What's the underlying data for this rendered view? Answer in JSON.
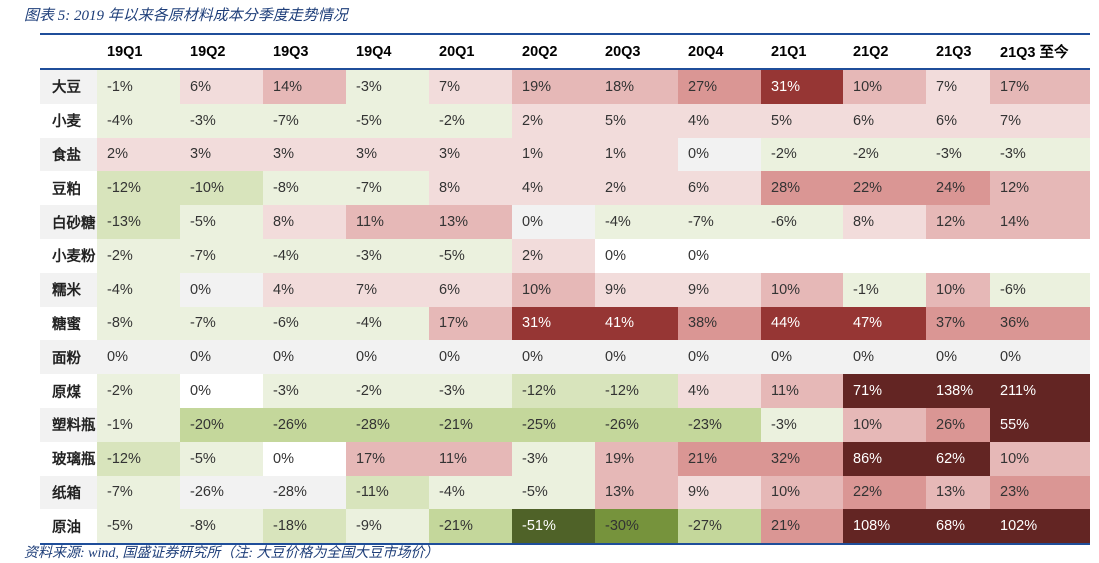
{
  "title": "图表 5:  2019 年以来各原材料成本分季度走势情况",
  "footer": "资料来源:  wind,  国盛证券研究所（注:  大豆价格为全国大豆市场价）",
  "palette": {
    "w": "#ffffff",
    "z": "#f2f2f2",
    "g1": "#ebf1de",
    "g2": "#d8e4bc",
    "g3": "#c4d79b",
    "g4": "#76933c",
    "g5": "#4f6228",
    "r1": "#f2dcdb",
    "r2": "#e6b8b7",
    "r3": "#da9694",
    "r4": "#963634",
    "r5": "#632523"
  },
  "table": {
    "columns": [
      "",
      "19Q1",
      "19Q2",
      "19Q3",
      "19Q4",
      "20Q1",
      "20Q2",
      "20Q3",
      "20Q4",
      "21Q1",
      "21Q2",
      "21Q3",
      "21Q3 至今"
    ],
    "rows": [
      {
        "label": "大豆",
        "values": [
          "-1%",
          "6%",
          "14%",
          "-3%",
          "7%",
          "19%",
          "18%",
          "27%",
          "31%",
          "10%",
          "7%",
          "17%"
        ],
        "colors": [
          "g1",
          "r1",
          "r2",
          "g1",
          "r1",
          "r2",
          "r2",
          "r3",
          "r4",
          "r2",
          "r1",
          "r2"
        ]
      },
      {
        "label": "小麦",
        "values": [
          "-4%",
          "-3%",
          "-7%",
          "-5%",
          "-2%",
          "2%",
          "5%",
          "4%",
          "5%",
          "6%",
          "6%",
          "7%"
        ],
        "colors": [
          "g1",
          "g1",
          "g1",
          "g1",
          "g1",
          "r1",
          "r1",
          "r1",
          "r1",
          "r1",
          "r1",
          "r1"
        ]
      },
      {
        "label": "食盐",
        "values": [
          "2%",
          "3%",
          "3%",
          "3%",
          "3%",
          "1%",
          "1%",
          "0%",
          "-2%",
          "-2%",
          "-3%",
          "-3%"
        ],
        "colors": [
          "r1",
          "r1",
          "r1",
          "r1",
          "r1",
          "r1",
          "r1",
          "z",
          "g1",
          "g1",
          "g1",
          "g1"
        ]
      },
      {
        "label": "豆粕",
        "values": [
          "-12%",
          "-10%",
          "-8%",
          "-7%",
          "8%",
          "4%",
          "2%",
          "6%",
          "28%",
          "22%",
          "24%",
          "12%"
        ],
        "colors": [
          "g2",
          "g2",
          "g1",
          "g1",
          "r1",
          "r1",
          "r1",
          "r1",
          "r3",
          "r3",
          "r3",
          "r2"
        ]
      },
      {
        "label": "白砂糖",
        "values": [
          "-13%",
          "-5%",
          "8%",
          "11%",
          "13%",
          "0%",
          "-4%",
          "-7%",
          "-6%",
          "8%",
          "12%",
          "14%"
        ],
        "colors": [
          "g2",
          "g1",
          "r1",
          "r2",
          "r2",
          "z",
          "g1",
          "g1",
          "g1",
          "r1",
          "r2",
          "r2"
        ]
      },
      {
        "label": "小麦粉",
        "values": [
          "-2%",
          "-7%",
          "-4%",
          "-3%",
          "-5%",
          "2%",
          "0%",
          "0%",
          "",
          "",
          "",
          ""
        ],
        "colors": [
          "g1",
          "g1",
          "g1",
          "g1",
          "g1",
          "r1",
          "w",
          "w",
          "w",
          "w",
          "w",
          "w"
        ]
      },
      {
        "label": "糯米",
        "values": [
          "-4%",
          "0%",
          "4%",
          "7%",
          "6%",
          "10%",
          "9%",
          "9%",
          "10%",
          "-1%",
          "10%",
          "-6%"
        ],
        "colors": [
          "g1",
          "z",
          "r1",
          "r1",
          "r1",
          "r2",
          "r1",
          "r1",
          "r2",
          "g1",
          "r2",
          "g1"
        ]
      },
      {
        "label": "糖蜜",
        "values": [
          "-8%",
          "-7%",
          "-6%",
          "-4%",
          "17%",
          "31%",
          "41%",
          "38%",
          "44%",
          "47%",
          "37%",
          "36%"
        ],
        "colors": [
          "g1",
          "g1",
          "g1",
          "g1",
          "r2",
          "r4",
          "r4",
          "r3",
          "r4",
          "r4",
          "r3",
          "r3"
        ]
      },
      {
        "label": "面粉",
        "values": [
          "0%",
          "0%",
          "0%",
          "0%",
          "0%",
          "0%",
          "0%",
          "0%",
          "0%",
          "0%",
          "0%",
          "0%"
        ],
        "colors": [
          "z",
          "z",
          "z",
          "z",
          "z",
          "z",
          "z",
          "z",
          "z",
          "z",
          "z",
          "z"
        ]
      },
      {
        "label": "原煤",
        "values": [
          "-2%",
          "0%",
          "-3%",
          "-2%",
          "-3%",
          "-12%",
          "-12%",
          "4%",
          "11%",
          "71%",
          "138%",
          "211%"
        ],
        "colors": [
          "g1",
          "w",
          "g1",
          "g1",
          "g1",
          "g2",
          "g2",
          "r1",
          "r2",
          "r5",
          "r5",
          "r5"
        ]
      },
      {
        "label": "塑料瓶",
        "values": [
          "-1%",
          "-20%",
          "-26%",
          "-28%",
          "-21%",
          "-25%",
          "-26%",
          "-23%",
          "-3%",
          "10%",
          "26%",
          "55%"
        ],
        "colors": [
          "g1",
          "g3",
          "g3",
          "g3",
          "g3",
          "g3",
          "g3",
          "g3",
          "g1",
          "r2",
          "r3",
          "r5"
        ]
      },
      {
        "label": "玻璃瓶",
        "values": [
          "-12%",
          "-5%",
          "0%",
          "17%",
          "11%",
          "-3%",
          "19%",
          "21%",
          "32%",
          "86%",
          "62%",
          "10%"
        ],
        "colors": [
          "g2",
          "g1",
          "w",
          "r2",
          "r2",
          "g1",
          "r2",
          "r3",
          "r3",
          "r5",
          "r5",
          "r2"
        ]
      },
      {
        "label": "纸箱",
        "values": [
          "-7%",
          "-26%",
          "-28%",
          "-11%",
          "-4%",
          "-5%",
          "13%",
          "9%",
          "10%",
          "22%",
          "13%",
          "23%"
        ],
        "colors": [
          "g1",
          "z",
          "z",
          "g2",
          "g1",
          "g1",
          "r2",
          "r1",
          "r2",
          "r3",
          "r2",
          "r3"
        ]
      },
      {
        "label": "原油",
        "values": [
          "-5%",
          "-8%",
          "-18%",
          "-9%",
          "-21%",
          "-51%",
          "-30%",
          "-27%",
          "21%",
          "108%",
          "68%",
          "102%"
        ],
        "colors": [
          "g1",
          "g1",
          "g2",
          "g1",
          "g3",
          "g5",
          "g4",
          "g3",
          "r3",
          "r5",
          "r5",
          "r5"
        ]
      }
    ]
  }
}
